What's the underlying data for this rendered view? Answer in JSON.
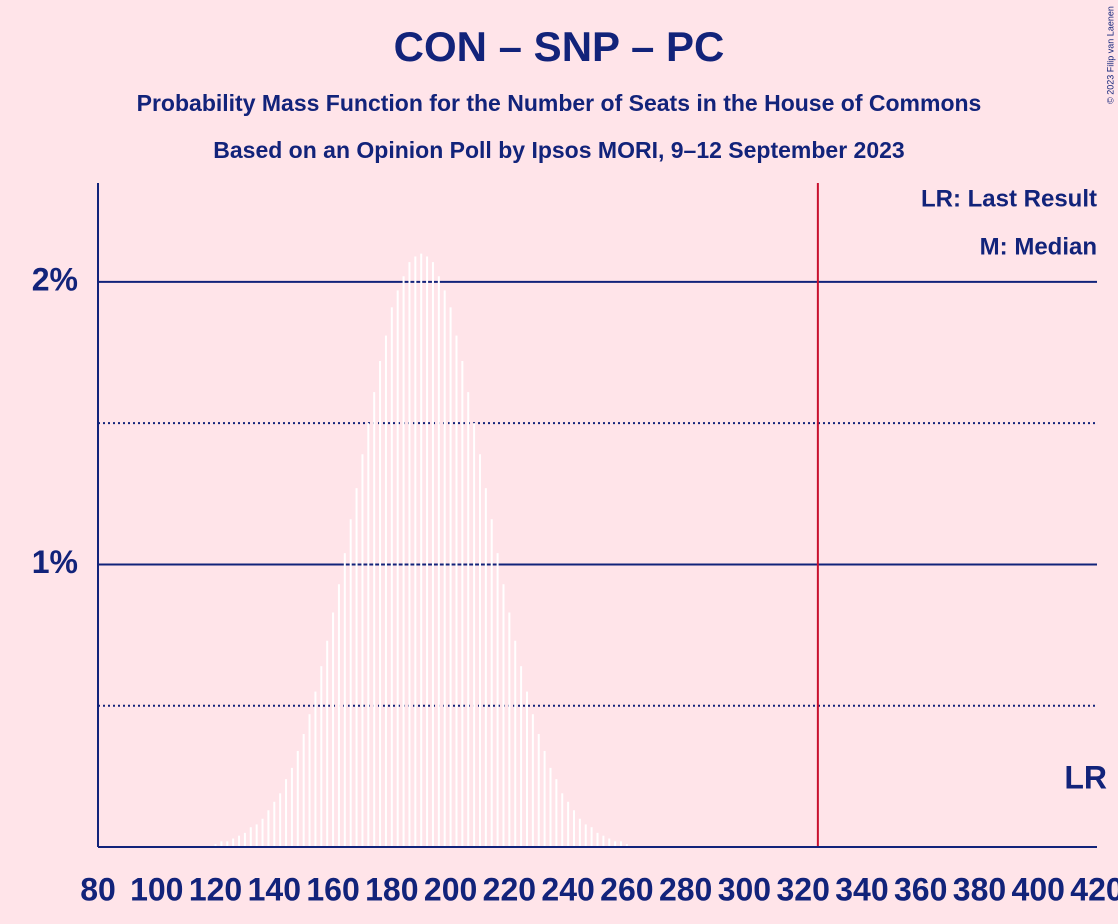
{
  "chart_data": {
    "type": "bar",
    "title": "CON – SNP – PC",
    "subtitle": "Probability Mass Function for the Number of Seats in the House of Commons",
    "subtitle2": "Based on an Opinion Poll by Ipsos MORI, 9–12 September 2023",
    "copyright": "© 2023 Filip van Laenen",
    "legend_entries": [
      "LR: Last Result",
      "M: Median"
    ],
    "last_result": 325,
    "last_result_label": "LR",
    "last_result_color": "#c8102e",
    "color": "#ffffff",
    "x": [
      120,
      122,
      124,
      126,
      128,
      130,
      132,
      134,
      136,
      138,
      140,
      142,
      144,
      146,
      148,
      150,
      152,
      154,
      156,
      158,
      160,
      162,
      164,
      166,
      168,
      170,
      172,
      174,
      176,
      178,
      180,
      182,
      184,
      186,
      188,
      190,
      192,
      194,
      196,
      198,
      200,
      202,
      204,
      206,
      208,
      210,
      212,
      214,
      216,
      218,
      220,
      222,
      224,
      226,
      228,
      230,
      232,
      234,
      236,
      238,
      240,
      242,
      244,
      246,
      248,
      250,
      252,
      254,
      256,
      258,
      260
    ],
    "values": [
      0.01,
      0.02,
      0.02,
      0.03,
      0.04,
      0.05,
      0.07,
      0.08,
      0.1,
      0.13,
      0.16,
      0.19,
      0.24,
      0.28,
      0.34,
      0.4,
      0.47,
      0.55,
      0.64,
      0.73,
      0.83,
      0.93,
      1.04,
      1.16,
      1.27,
      1.39,
      1.5,
      1.61,
      1.72,
      1.81,
      1.91,
      1.97,
      2.02,
      2.07,
      2.09,
      2.1,
      2.09,
      2.07,
      2.02,
      1.97,
      1.91,
      1.81,
      1.72,
      1.61,
      1.5,
      1.39,
      1.27,
      1.16,
      1.04,
      0.93,
      0.83,
      0.73,
      0.64,
      0.55,
      0.47,
      0.4,
      0.34,
      0.28,
      0.24,
      0.19,
      0.16,
      0.13,
      0.1,
      0.08,
      0.07,
      0.05,
      0.04,
      0.03,
      0.02,
      0.02,
      0.01
    ],
    "xlim": [
      80,
      420
    ],
    "xticks": [
      80,
      100,
      120,
      140,
      160,
      180,
      200,
      220,
      240,
      260,
      280,
      300,
      320,
      340,
      360,
      380,
      400,
      420
    ],
    "ylim": [
      0,
      2.35
    ],
    "yticks": [
      {
        "value": 1,
        "label": "1%"
      },
      {
        "value": 2,
        "label": "2%"
      }
    ],
    "minor_yticks": [
      0.5,
      1.5
    ],
    "grid": true
  }
}
